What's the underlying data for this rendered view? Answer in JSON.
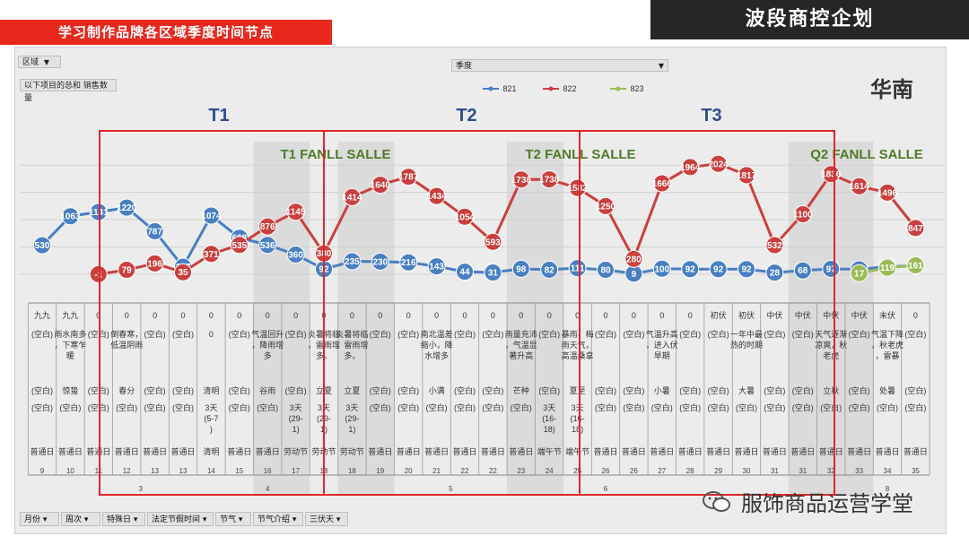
{
  "header": {
    "left_title": "学习制作品牌各区域季度时间节点",
    "right_title": "波段商控企划"
  },
  "controls": {
    "region_label": "区域",
    "sum_label": "以下项目的总和 销售数量",
    "season_label": "季度"
  },
  "region_name": "华南",
  "phases": [
    "T1",
    "T2",
    "T3"
  ],
  "band_labels": [
    "T1 FANLL SALLE",
    "T2 FANLL SALLE",
    "Q2 FANLL SALLE"
  ],
  "footer": {
    "brand": "服饰商品运营学堂",
    "filters": [
      "月份",
      "周次",
      "特殊日",
      "法定节假时间",
      "节气",
      "节气介绍",
      "三伏天"
    ]
  },
  "chart_data": {
    "type": "line",
    "x": [
      "9",
      "10",
      "11",
      "12",
      "13",
      "13",
      "14",
      "15",
      "16",
      "17",
      "18",
      "18",
      "19",
      "20",
      "21",
      "22",
      "22",
      "23",
      "24",
      "25",
      "26",
      "26",
      "27",
      "28",
      "29",
      "30",
      "31",
      "31",
      "32",
      "33",
      "34",
      "35"
    ],
    "series": [
      {
        "name": "821",
        "color": "#4a7fc1",
        "values": [
          530,
          1063,
          1141,
          1220,
          787,
          137,
          1074,
          668,
          536,
          360,
          92,
          235,
          230,
          216,
          143,
          44,
          31,
          98,
          82,
          111,
          80,
          9,
          100,
          92,
          92,
          92,
          28,
          68,
          97,
          88,
          139,
          153
        ]
      },
      {
        "name": "822",
        "color": "#c9403f",
        "values": [
          null,
          null,
          -1,
          79,
          196,
          35,
          371,
          535,
          876,
          1145,
          380,
          1414,
          1640,
          1787,
          1434,
          1054,
          593,
          1736,
          1738,
          1582,
          1250,
          280,
          1666,
          1964,
          2024,
          1817,
          532,
          1100,
          1836,
          1614,
          1496,
          847
        ]
      },
      {
        "name": "823",
        "color": "#9bbb59",
        "values": [
          null,
          null,
          null,
          null,
          null,
          null,
          null,
          null,
          null,
          null,
          null,
          null,
          null,
          null,
          null,
          null,
          null,
          null,
          null,
          null,
          null,
          null,
          null,
          null,
          null,
          null,
          null,
          null,
          null,
          17,
          119,
          161
        ]
      }
    ],
    "ylim": [
      -200,
      2300
    ],
    "grid": true,
    "legend": "top-center",
    "table": {
      "row1": [
        "九九",
        "九九",
        "0",
        "0",
        "0",
        "0",
        "0",
        "0",
        "0",
        "0",
        "0",
        "0",
        "0",
        "0",
        "0",
        "0",
        "0",
        "0",
        "0",
        "0",
        "0",
        "0",
        "0",
        "0",
        "初伏",
        "初伏",
        "中伏",
        "中伏",
        "中伏",
        "中伏",
        "末伏",
        "0"
      ],
      "row2": [
        "(空白)",
        "雨水南多，下寒乍暖",
        "(空白)",
        "倒春寒，低温阴雨",
        "(空白)",
        "(空白)",
        "0",
        "(空白)",
        "气温回升，降雨增多",
        "(空白)",
        "炎暑将临，雷雨增多。",
        "炎暑将临，雷雨增多。",
        "(空白)",
        "(空白)",
        "南北温差缩小，降水增多",
        "(空白)",
        "(空白)",
        "雨量充沛，气温显著升高",
        "(空白)",
        "暴雨、梅雨天气，高温桑拿",
        "(空白)",
        "(空白)",
        "气温升高，进入伏旱期",
        "(空白)",
        "(空白)",
        "一年中最热的时期",
        "(空白)",
        "(空白)",
        "天气逐渐凉爽，秋老虎",
        "(空白)",
        "气温下降，秋老虎，雷暴",
        "(空白)"
      ],
      "row3": [
        "(空白)",
        "惊蛰",
        "(空白)",
        "春分",
        "(空白)",
        "(空白)",
        "清明",
        "(空白)",
        "谷雨",
        "(空白)",
        "立夏",
        "立夏",
        "(空白)",
        "(空白)",
        "小满",
        "(空白)",
        "(空白)",
        "芒种",
        "(空白)",
        "夏至",
        "(空白)",
        "(空白)",
        "小暑",
        "(空白)",
        "(空白)",
        "大暑",
        "(空白)",
        "(空白)",
        "立秋",
        "(空白)",
        "处暑",
        "(空白)"
      ],
      "row4": [
        "(空白)",
        "(空白)",
        "(空白)",
        "(空白)",
        "(空白)",
        "(空白)",
        "3天 (5-7)",
        "(空白)",
        "(空白)",
        "3天 (29-1)",
        "3天 (29-1)",
        "3天 (29-1)",
        "(空白)",
        "(空白)",
        "(空白)",
        "(空白)",
        "(空白)",
        "(空白)",
        "3天 (16-18)",
        "3天 (16-18)",
        "(空白)",
        "(空白)",
        "(空白)",
        "(空白)",
        "(空白)",
        "(空白)",
        "(空白)",
        "(空白)",
        "(空白)",
        "(空白)",
        "(空白)",
        "(空白)"
      ],
      "row5": [
        "普通日",
        "普通日",
        "普通日",
        "普通日",
        "普通日",
        "普通日",
        "清明",
        "普通日",
        "普通日",
        "劳动节",
        "劳动节",
        "劳动节",
        "普通日",
        "普通日",
        "普通日",
        "普通日",
        "普通日",
        "普通日",
        "端午节",
        "端午节",
        "普通日",
        "普通日",
        "普通日",
        "普通日",
        "普通日",
        "普通日",
        "普通日",
        "普通日",
        "普通日",
        "普通日",
        "普通日",
        "普通日"
      ],
      "months": [
        {
          "label": "3",
          "start": 2,
          "end": 5
        },
        {
          "label": "4",
          "start": 6,
          "end": 10
        },
        {
          "label": "5",
          "start": 11,
          "end": 18
        },
        {
          "label": "6",
          "start": 19,
          "end": 21
        },
        {
          "label": "8",
          "start": 29,
          "end": 31
        }
      ]
    }
  }
}
